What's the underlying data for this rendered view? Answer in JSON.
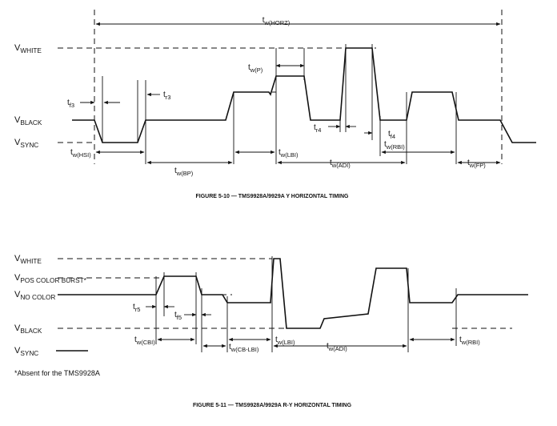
{
  "figures": [
    {
      "levels": [
        {
          "main": "V",
          "sub": "WHITE"
        },
        {
          "main": "V",
          "sub": "BLACK"
        },
        {
          "main": "V",
          "sub": "SYNC"
        }
      ],
      "timings": [
        {
          "main": "t",
          "sub": "w(HORZ)"
        },
        {
          "main": "t",
          "sub": "f3"
        },
        {
          "main": "t",
          "sub": "r3"
        },
        {
          "main": "t",
          "sub": "w(P)"
        },
        {
          "main": "t",
          "sub": "r4"
        },
        {
          "main": "t",
          "sub": "f4"
        },
        {
          "main": "t",
          "sub": "w(HSI)"
        },
        {
          "main": "t",
          "sub": "w(BP)"
        },
        {
          "main": "t",
          "sub": "w(LBI)"
        },
        {
          "main": "t",
          "sub": "w(ADI)"
        },
        {
          "main": "t",
          "sub": "w(RBI)"
        },
        {
          "main": "t",
          "sub": "w(FP)"
        }
      ],
      "caption": "FIGURE 5-10 — TMS9928A/9929A Y HORIZONTAL TIMING"
    },
    {
      "levels": [
        {
          "main": "V",
          "sub": "WHITE"
        },
        {
          "main": "V",
          "sub": "POS COLOR BURST*"
        },
        {
          "main": "V",
          "sub": "NO COLOR"
        },
        {
          "main": "V",
          "sub": "BLACK"
        },
        {
          "main": "V",
          "sub": "SYNC"
        }
      ],
      "timings": [
        {
          "main": "t",
          "sub": "r5"
        },
        {
          "main": "t",
          "sub": "f5"
        },
        {
          "main": "t",
          "sub": "w(CBI)"
        },
        {
          "main": "t",
          "sub": "w(CB-LBI)"
        },
        {
          "main": "t",
          "sub": "w(LBI)"
        },
        {
          "main": "t",
          "sub": "w(ADI)"
        },
        {
          "main": "t",
          "sub": "w(RBI)"
        }
      ],
      "footnote": "*Absent for the TMS9928A",
      "caption": "FIGURE 5-11 — TMS9928A/9929A R-Y HORIZONTAL TIMING"
    }
  ]
}
